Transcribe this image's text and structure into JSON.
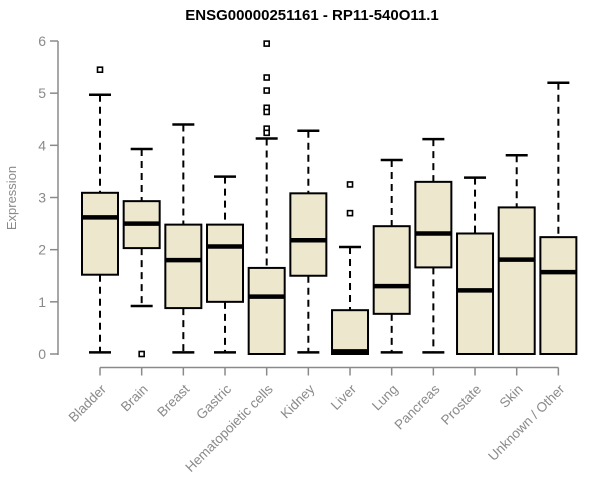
{
  "colors": {
    "background": "#ffffff",
    "box_fill": "#ede7ce",
    "box_border": "#000000",
    "median": "#000000",
    "whisker": "#000000",
    "outlier_stroke": "#000000",
    "outlier_fill": "#ffffff",
    "axis": "#8a8a8a",
    "tick_text": "#8a8a8a",
    "title_text": "#000000"
  },
  "chart_data": {
    "type": "boxplot",
    "title": "ENSG00000251161 - RP11-540O11.1",
    "xlabel": "",
    "ylabel": "Expression",
    "ylim": [
      0,
      6
    ],
    "yticks": [
      0,
      1,
      2,
      3,
      4,
      5,
      6
    ],
    "grid": false,
    "legend": "none",
    "categories": [
      "Bladder",
      "Brain",
      "Breast",
      "Gastric",
      "Hematopoietic cells",
      "Kidney",
      "Liver",
      "Lung",
      "Pancreas",
      "Prostate",
      "Skin",
      "Unknown / Other"
    ],
    "boxes": [
      {
        "label": "Bladder",
        "whisker_low": 0.03,
        "q1": 1.52,
        "median": 2.62,
        "q3": 3.09,
        "whisker_high": 4.97,
        "outliers": [
          5.45
        ]
      },
      {
        "label": "Brain",
        "whisker_low": 0.92,
        "q1": 2.03,
        "median": 2.5,
        "q3": 2.93,
        "whisker_high": 3.93,
        "outliers": [
          0.0
        ]
      },
      {
        "label": "Breast",
        "whisker_low": 0.03,
        "q1": 0.88,
        "median": 1.8,
        "q3": 2.48,
        "whisker_high": 4.4,
        "outliers": []
      },
      {
        "label": "Gastric",
        "whisker_low": 0.03,
        "q1": 1.0,
        "median": 2.06,
        "q3": 2.48,
        "whisker_high": 3.4,
        "outliers": []
      },
      {
        "label": "Hematopoietic cells",
        "whisker_low": 0.0,
        "q1": 0.0,
        "median": 1.1,
        "q3": 1.65,
        "whisker_high": 4.13,
        "outliers": [
          5.95,
          5.3,
          5.05,
          4.72,
          4.64,
          4.32,
          4.24
        ]
      },
      {
        "label": "Kidney",
        "whisker_low": 0.03,
        "q1": 1.5,
        "median": 2.18,
        "q3": 3.08,
        "whisker_high": 4.28,
        "outliers": []
      },
      {
        "label": "Liver",
        "whisker_low": 0.0,
        "q1": 0.0,
        "median": 0.05,
        "q3": 0.84,
        "whisker_high": 2.05,
        "outliers": [
          3.25,
          2.7
        ]
      },
      {
        "label": "Lung",
        "whisker_low": 0.03,
        "q1": 0.77,
        "median": 1.3,
        "q3": 2.45,
        "whisker_high": 3.72,
        "outliers": []
      },
      {
        "label": "Pancreas",
        "whisker_low": 0.03,
        "q1": 1.66,
        "median": 2.31,
        "q3": 3.3,
        "whisker_high": 4.12,
        "outliers": []
      },
      {
        "label": "Prostate",
        "whisker_low": 0.0,
        "q1": 0.0,
        "median": 1.22,
        "q3": 2.31,
        "whisker_high": 3.38,
        "outliers": []
      },
      {
        "label": "Skin",
        "whisker_low": 0.0,
        "q1": 0.0,
        "median": 1.81,
        "q3": 2.81,
        "whisker_high": 3.81,
        "outliers": []
      },
      {
        "label": "Unknown / Other",
        "whisker_low": 0.0,
        "q1": 0.0,
        "median": 1.57,
        "q3": 2.24,
        "whisker_high": 5.2,
        "outliers": []
      }
    ]
  }
}
